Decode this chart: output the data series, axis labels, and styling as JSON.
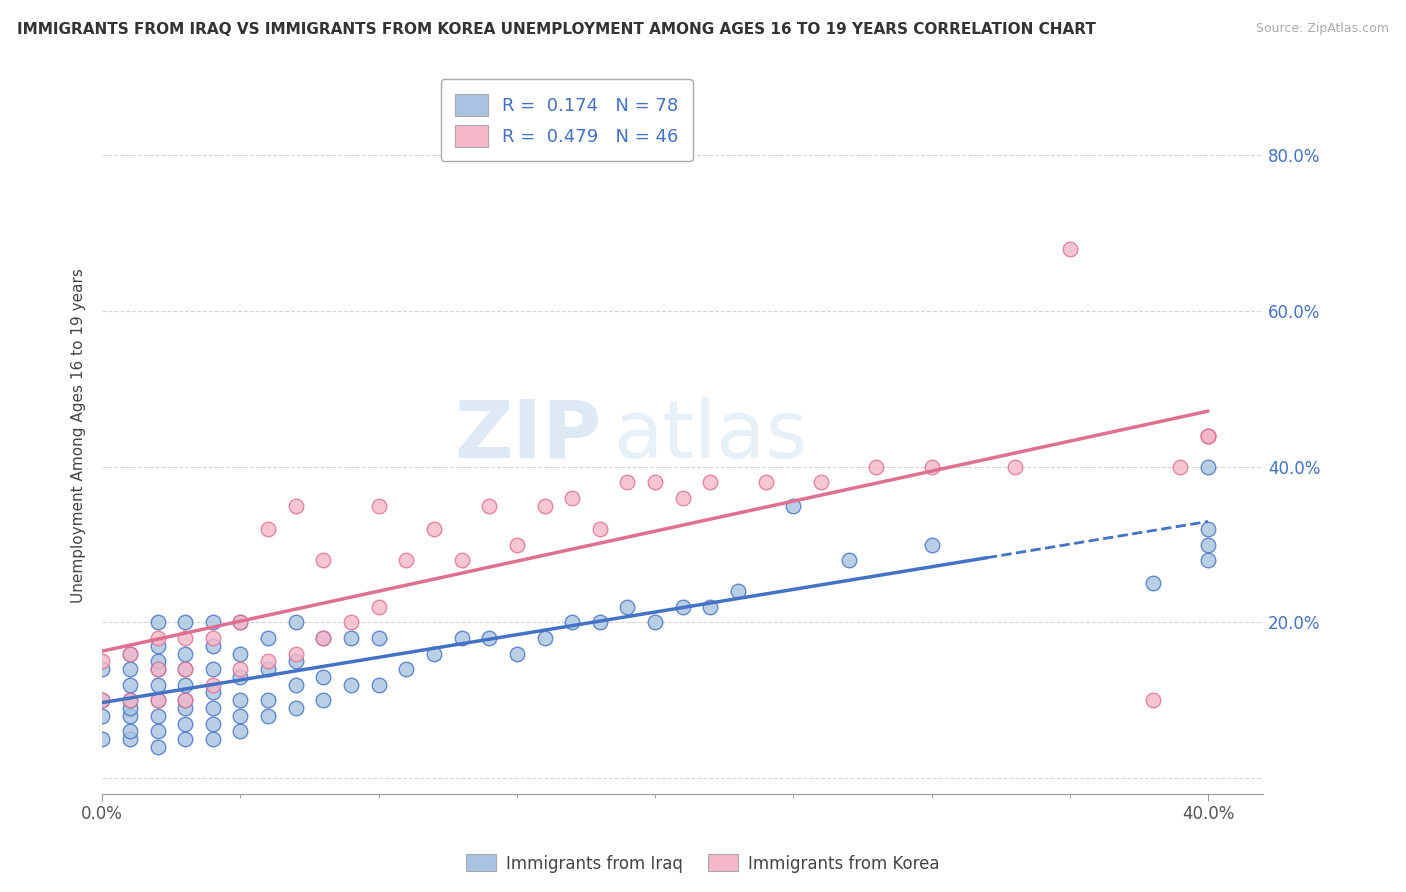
{
  "title": "IMMIGRANTS FROM IRAQ VS IMMIGRANTS FROM KOREA UNEMPLOYMENT AMONG AGES 16 TO 19 YEARS CORRELATION CHART",
  "source": "Source: ZipAtlas.com",
  "ylabel": "Unemployment Among Ages 16 to 19 years",
  "xlim": [
    0.0,
    0.42
  ],
  "ylim": [
    -0.02,
    0.9
  ],
  "watermark_part1": "ZIP",
  "watermark_part2": "atlas",
  "iraq_color": "#a8c4e0",
  "iraq_line_color": "#4472c4",
  "korea_color": "#f4b8c8",
  "korea_line_color": "#e07090",
  "iraq_R": 0.174,
  "iraq_N": 78,
  "korea_R": 0.479,
  "korea_N": 46,
  "grid_color": "#cccccc",
  "background_color": "#ffffff",
  "iraq_scatter_x": [
    0.0,
    0.0,
    0.0,
    0.0,
    0.01,
    0.01,
    0.01,
    0.01,
    0.01,
    0.01,
    0.01,
    0.01,
    0.02,
    0.02,
    0.02,
    0.02,
    0.02,
    0.02,
    0.02,
    0.02,
    0.02,
    0.03,
    0.03,
    0.03,
    0.03,
    0.03,
    0.03,
    0.03,
    0.03,
    0.04,
    0.04,
    0.04,
    0.04,
    0.04,
    0.04,
    0.04,
    0.05,
    0.05,
    0.05,
    0.05,
    0.05,
    0.05,
    0.06,
    0.06,
    0.06,
    0.06,
    0.07,
    0.07,
    0.07,
    0.07,
    0.08,
    0.08,
    0.08,
    0.09,
    0.09,
    0.1,
    0.1,
    0.11,
    0.12,
    0.13,
    0.14,
    0.15,
    0.16,
    0.17,
    0.18,
    0.19,
    0.2,
    0.21,
    0.22,
    0.23,
    0.25,
    0.27,
    0.3,
    0.38,
    0.4,
    0.4,
    0.4,
    0.4
  ],
  "iraq_scatter_y": [
    0.05,
    0.08,
    0.1,
    0.14,
    0.05,
    0.06,
    0.08,
    0.09,
    0.1,
    0.12,
    0.14,
    0.16,
    0.04,
    0.06,
    0.08,
    0.1,
    0.12,
    0.14,
    0.15,
    0.17,
    0.2,
    0.05,
    0.07,
    0.09,
    0.1,
    0.12,
    0.14,
    0.16,
    0.2,
    0.05,
    0.07,
    0.09,
    0.11,
    0.14,
    0.17,
    0.2,
    0.06,
    0.08,
    0.1,
    0.13,
    0.16,
    0.2,
    0.08,
    0.1,
    0.14,
    0.18,
    0.09,
    0.12,
    0.15,
    0.2,
    0.1,
    0.13,
    0.18,
    0.12,
    0.18,
    0.12,
    0.18,
    0.14,
    0.16,
    0.18,
    0.18,
    0.16,
    0.18,
    0.2,
    0.2,
    0.22,
    0.2,
    0.22,
    0.22,
    0.24,
    0.35,
    0.28,
    0.3,
    0.25,
    0.28,
    0.3,
    0.32,
    0.4
  ],
  "korea_scatter_x": [
    0.0,
    0.0,
    0.01,
    0.01,
    0.02,
    0.02,
    0.02,
    0.03,
    0.03,
    0.03,
    0.04,
    0.04,
    0.05,
    0.05,
    0.06,
    0.06,
    0.07,
    0.07,
    0.08,
    0.08,
    0.09,
    0.1,
    0.1,
    0.11,
    0.12,
    0.13,
    0.14,
    0.15,
    0.16,
    0.17,
    0.18,
    0.19,
    0.2,
    0.21,
    0.22,
    0.24,
    0.26,
    0.28,
    0.3,
    0.33,
    0.35,
    0.38,
    0.39,
    0.4,
    0.4,
    0.4
  ],
  "korea_scatter_y": [
    0.1,
    0.15,
    0.1,
    0.16,
    0.1,
    0.14,
    0.18,
    0.1,
    0.14,
    0.18,
    0.12,
    0.18,
    0.14,
    0.2,
    0.15,
    0.32,
    0.16,
    0.35,
    0.18,
    0.28,
    0.2,
    0.22,
    0.35,
    0.28,
    0.32,
    0.28,
    0.35,
    0.3,
    0.35,
    0.36,
    0.32,
    0.38,
    0.38,
    0.36,
    0.38,
    0.38,
    0.38,
    0.4,
    0.4,
    0.4,
    0.68,
    0.1,
    0.4,
    0.44,
    0.44,
    0.44
  ],
  "iraq_line_solid_end": 0.32,
  "iraq_line_dashed_start": 0.32
}
